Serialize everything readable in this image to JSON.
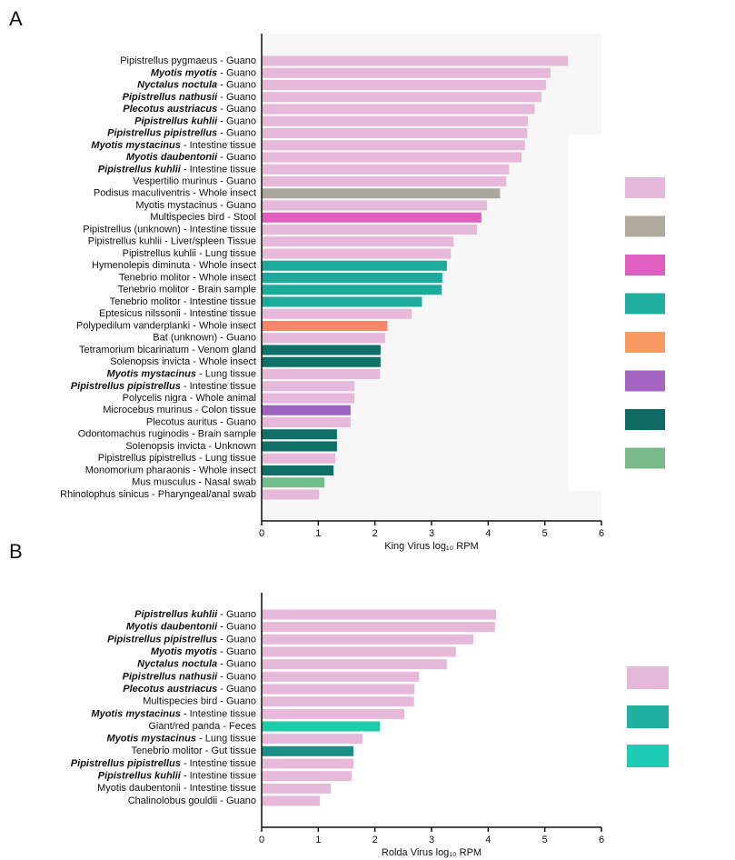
{
  "chart_data": [
    {
      "type": "bar",
      "orientation": "horizontal",
      "panel_label": "A",
      "categories": [
        "Pipistrellus pygmaeus - Guano",
        "Myotis myotis - Guano",
        "Nyctalus noctula - Guano",
        "Pipistrellus nathusii - Guano",
        "Plecotus austriacus - Guano",
        "Pipistrellus kuhlii - Guano",
        "Pipistrellus pipistrellus - Guano",
        "Myotis mystacinus - Intestine tissue",
        "Myotis daubentonii - Guano",
        "Pipistrellus kuhlii - Intestine tissue",
        "Vespertilio murinus - Guano",
        "Podisus maculiventris - Whole insect",
        "Myotis mystacinus - Guano",
        "Multispecies bird - Stool",
        "Pipistrellus (unknown) - Intestine tissue",
        "Pipistrellus kuhlii - Liver/spleen Tissue",
        "Pipistrellus kuhlii - Lung tissue",
        "Hymenolepis diminuta - Whole insect",
        "Tenebrio molitor - Whole insect",
        "Tenebrio molitor - Brain sample",
        "Tenebrio molitor - Intestine tissue",
        "Eptesicus nilssonii - Intestine tissue",
        "Polypedilum vanderplanki - Whole insect",
        "Bat (unknown) - Guano",
        "Tetramorium bicarinatum - Venom gland",
        "Solenopsis invicta - Whole insect",
        "Myotis mystacinus - Lung tissue",
        "Pipistrellus pipistrellus - Intestine tissue",
        "Polycelis nigra - Whole animal",
        "Microcebus murinus - Colon tissue",
        "Plecotus auritus - Guano",
        "Odontomachus ruginodis - Brain sample",
        "Solenopsis invicta - Unknown",
        "Pipistrellus pipistrellus - Lung tissue",
        "Monomorium pharaonis - Whole insect",
        "Mus musculus - Nasal swab",
        "Rhinolophus sinicus - Pharyngeal/anal swab"
      ],
      "bold_species": [
        false,
        true,
        true,
        true,
        true,
        true,
        true,
        true,
        true,
        true,
        false,
        false,
        false,
        false,
        false,
        false,
        false,
        false,
        false,
        false,
        false,
        false,
        false,
        false,
        false,
        false,
        true,
        true,
        false,
        false,
        false,
        false,
        false,
        false,
        false,
        false,
        false
      ],
      "values": [
        5.41,
        5.1,
        5.02,
        4.94,
        4.82,
        4.7,
        4.69,
        4.65,
        4.59,
        4.37,
        4.32,
        4.21,
        3.98,
        3.88,
        3.8,
        3.39,
        3.34,
        3.27,
        3.19,
        3.18,
        2.83,
        2.65,
        2.22,
        2.18,
        2.1,
        2.1,
        2.09,
        1.64,
        1.64,
        1.57,
        1.57,
        1.33,
        1.33,
        1.3,
        1.27,
        1.11,
        1.01
      ],
      "colors": [
        "#e6b8d9",
        "#e6b8d9",
        "#e6b8d9",
        "#e6b8d9",
        "#e6b8d9",
        "#e6b8d9",
        "#e6b8d9",
        "#e6b8d9",
        "#e6b8d9",
        "#e6b8d9",
        "#e6b8d9",
        "#aaa79f",
        "#e6b8d9",
        "#e05ec0",
        "#e6b8d9",
        "#e6b8d9",
        "#e6b8d9",
        "#1aab9b",
        "#1aab9b",
        "#1aab9b",
        "#1aab9b",
        "#e6b8d9",
        "#f7866a",
        "#e6b8d9",
        "#0f7068",
        "#0f7068",
        "#e6b8d9",
        "#e6b8d9",
        "#e6b8d9",
        "#9c63c0",
        "#e6b8d9",
        "#0f7068",
        "#0f7068",
        "#e6b8d9",
        "#0f7068",
        "#73bf8a",
        "#e6b8d9"
      ],
      "xlabel": "King Virus log₁₀ RPM",
      "xlim": [
        0,
        6
      ],
      "xticks": [
        0,
        1,
        2,
        3,
        4,
        5,
        6
      ],
      "legend_colors": [
        "#e6b8d9",
        "#b0aa9e",
        "#e05ec0",
        "#1fb0a0",
        "#f99a62",
        "#a566c3",
        "#0f6a62",
        "#79b98a"
      ]
    },
    {
      "type": "bar",
      "orientation": "horizontal",
      "panel_label": "B",
      "categories": [
        "Pipistrellus kuhlii - Guano",
        "Myotis daubentonii - Guano",
        "Pipistrellus pipistrellus - Guano",
        "Myotis myotis - Guano",
        "Nyctalus noctula - Guano",
        "Pipistrellus nathusii - Guano",
        "Plecotus austriacus - Guano",
        "Multispecies bird - Guano",
        "Myotis mystacinus - Intestine tissue",
        "Giant/red panda - Feces",
        "Myotis mystacinus - Lung tissue",
        "Tenebrio molitor - Gut tissue",
        "Pipistrellus pipistrellus - Intestine tissue",
        "Pipistrellus kuhlii - Intestine tissue",
        "Myotis daubentonii - Intestine tissue",
        "Chalinolobus gouldii - Guano"
      ],
      "bold_species": [
        true,
        true,
        true,
        true,
        true,
        true,
        true,
        false,
        true,
        false,
        true,
        false,
        true,
        true,
        false,
        false
      ],
      "values": [
        4.14,
        4.12,
        3.74,
        3.43,
        3.27,
        2.78,
        2.7,
        2.69,
        2.52,
        2.09,
        1.78,
        1.62,
        1.62,
        1.59,
        1.22,
        1.03
      ],
      "colors": [
        "#e6b8d9",
        "#e6b8d9",
        "#e6b8d9",
        "#e6b8d9",
        "#e6b8d9",
        "#e6b8d9",
        "#e6b8d9",
        "#e6b8d9",
        "#e6b8d9",
        "#1ecba9",
        "#e6b8d9",
        "#1a8f88",
        "#e6b8d9",
        "#e6b8d9",
        "#e6b8d9",
        "#e6b8d9"
      ],
      "xlabel": "Rolda Virus log₁₀ RPM",
      "xlim": [
        0,
        6
      ],
      "xticks": [
        0,
        1,
        2,
        3,
        4,
        5,
        6
      ],
      "legend_colors": [
        "#e6b8d9",
        "#1fb0a0",
        "#1ecbb4"
      ]
    }
  ]
}
